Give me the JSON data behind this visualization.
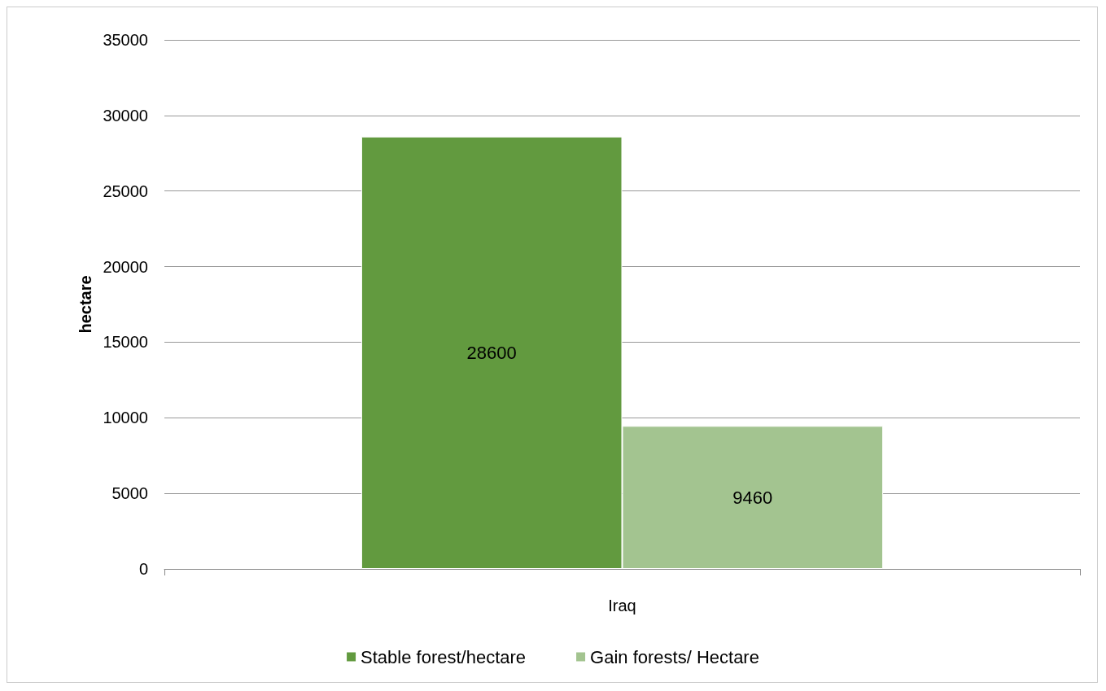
{
  "chart_data": {
    "type": "bar",
    "ylabel": "hectare",
    "categories": [
      "Iraq"
    ],
    "series": [
      {
        "name": "Stable forest/hectare",
        "color": "#629a3f",
        "values": [
          28600
        ]
      },
      {
        "name": "Gain forests/ Hectare",
        "color": "#a3c490",
        "values": [
          9460
        ]
      }
    ],
    "ylim": [
      0,
      35000
    ],
    "yticks": [
      0,
      5000,
      10000,
      15000,
      20000,
      25000,
      30000,
      35000
    ],
    "grid": "y",
    "legend": "bottom",
    "data_labels": true
  }
}
